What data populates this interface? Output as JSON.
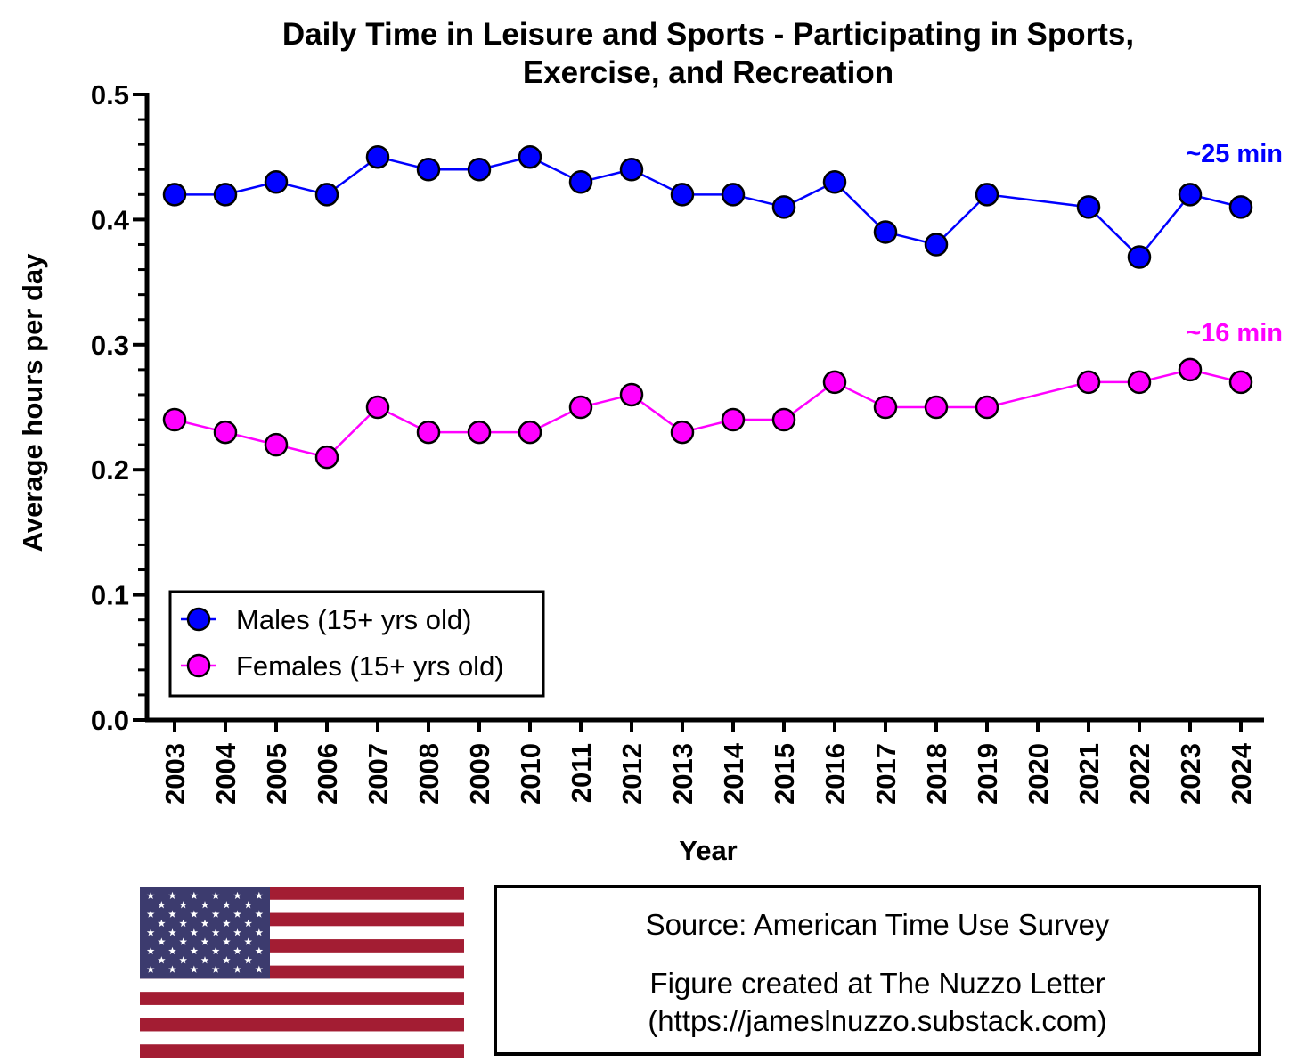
{
  "chart_data": {
    "type": "line",
    "title_lines": [
      "Daily Time in Leisure and Sports - Participating in Sports,",
      "Exercise, and Recreation"
    ],
    "xlabel": "Year",
    "ylabel": "Average hours per day",
    "ylim": [
      0,
      0.5
    ],
    "yticks": [
      "0.0",
      "0.1",
      "0.2",
      "0.3",
      "0.4",
      "0.5"
    ],
    "categories": [
      "2003",
      "2004",
      "2005",
      "2006",
      "2007",
      "2008",
      "2009",
      "2010",
      "2011",
      "2012",
      "2013",
      "2014",
      "2015",
      "2016",
      "2017",
      "2018",
      "2019",
      "2020",
      "2021",
      "2022",
      "2023",
      "2024"
    ],
    "series": [
      {
        "name": "Males (15+ yrs old)",
        "color": "#0000ff",
        "values": [
          0.42,
          0.42,
          0.43,
          0.42,
          0.45,
          0.44,
          0.44,
          0.45,
          0.43,
          0.44,
          0.42,
          0.42,
          0.41,
          0.43,
          0.39,
          0.38,
          0.42,
          null,
          0.41,
          0.37,
          0.42,
          0.41
        ],
        "annotation": "~25 min"
      },
      {
        "name": "Females (15+ yrs old)",
        "color": "#ff00ff",
        "values": [
          0.24,
          0.23,
          0.22,
          0.21,
          0.25,
          0.23,
          0.23,
          0.23,
          0.25,
          0.26,
          0.23,
          0.24,
          0.24,
          0.27,
          0.25,
          0.25,
          0.25,
          null,
          0.27,
          0.27,
          0.28,
          0.27
        ],
        "annotation": "~16 min"
      }
    ],
    "grid": false,
    "legend_position": "bottom-left"
  },
  "footer": {
    "source": "Source: American Time Use Survey",
    "credit": "Figure created at The Nuzzo Letter",
    "url": "(https://jameslnuzzo.substack.com)"
  },
  "flag": {
    "name": "us-flag-icon",
    "stripe_red": "#a31d33",
    "canton_blue": "#3c3b6e"
  }
}
